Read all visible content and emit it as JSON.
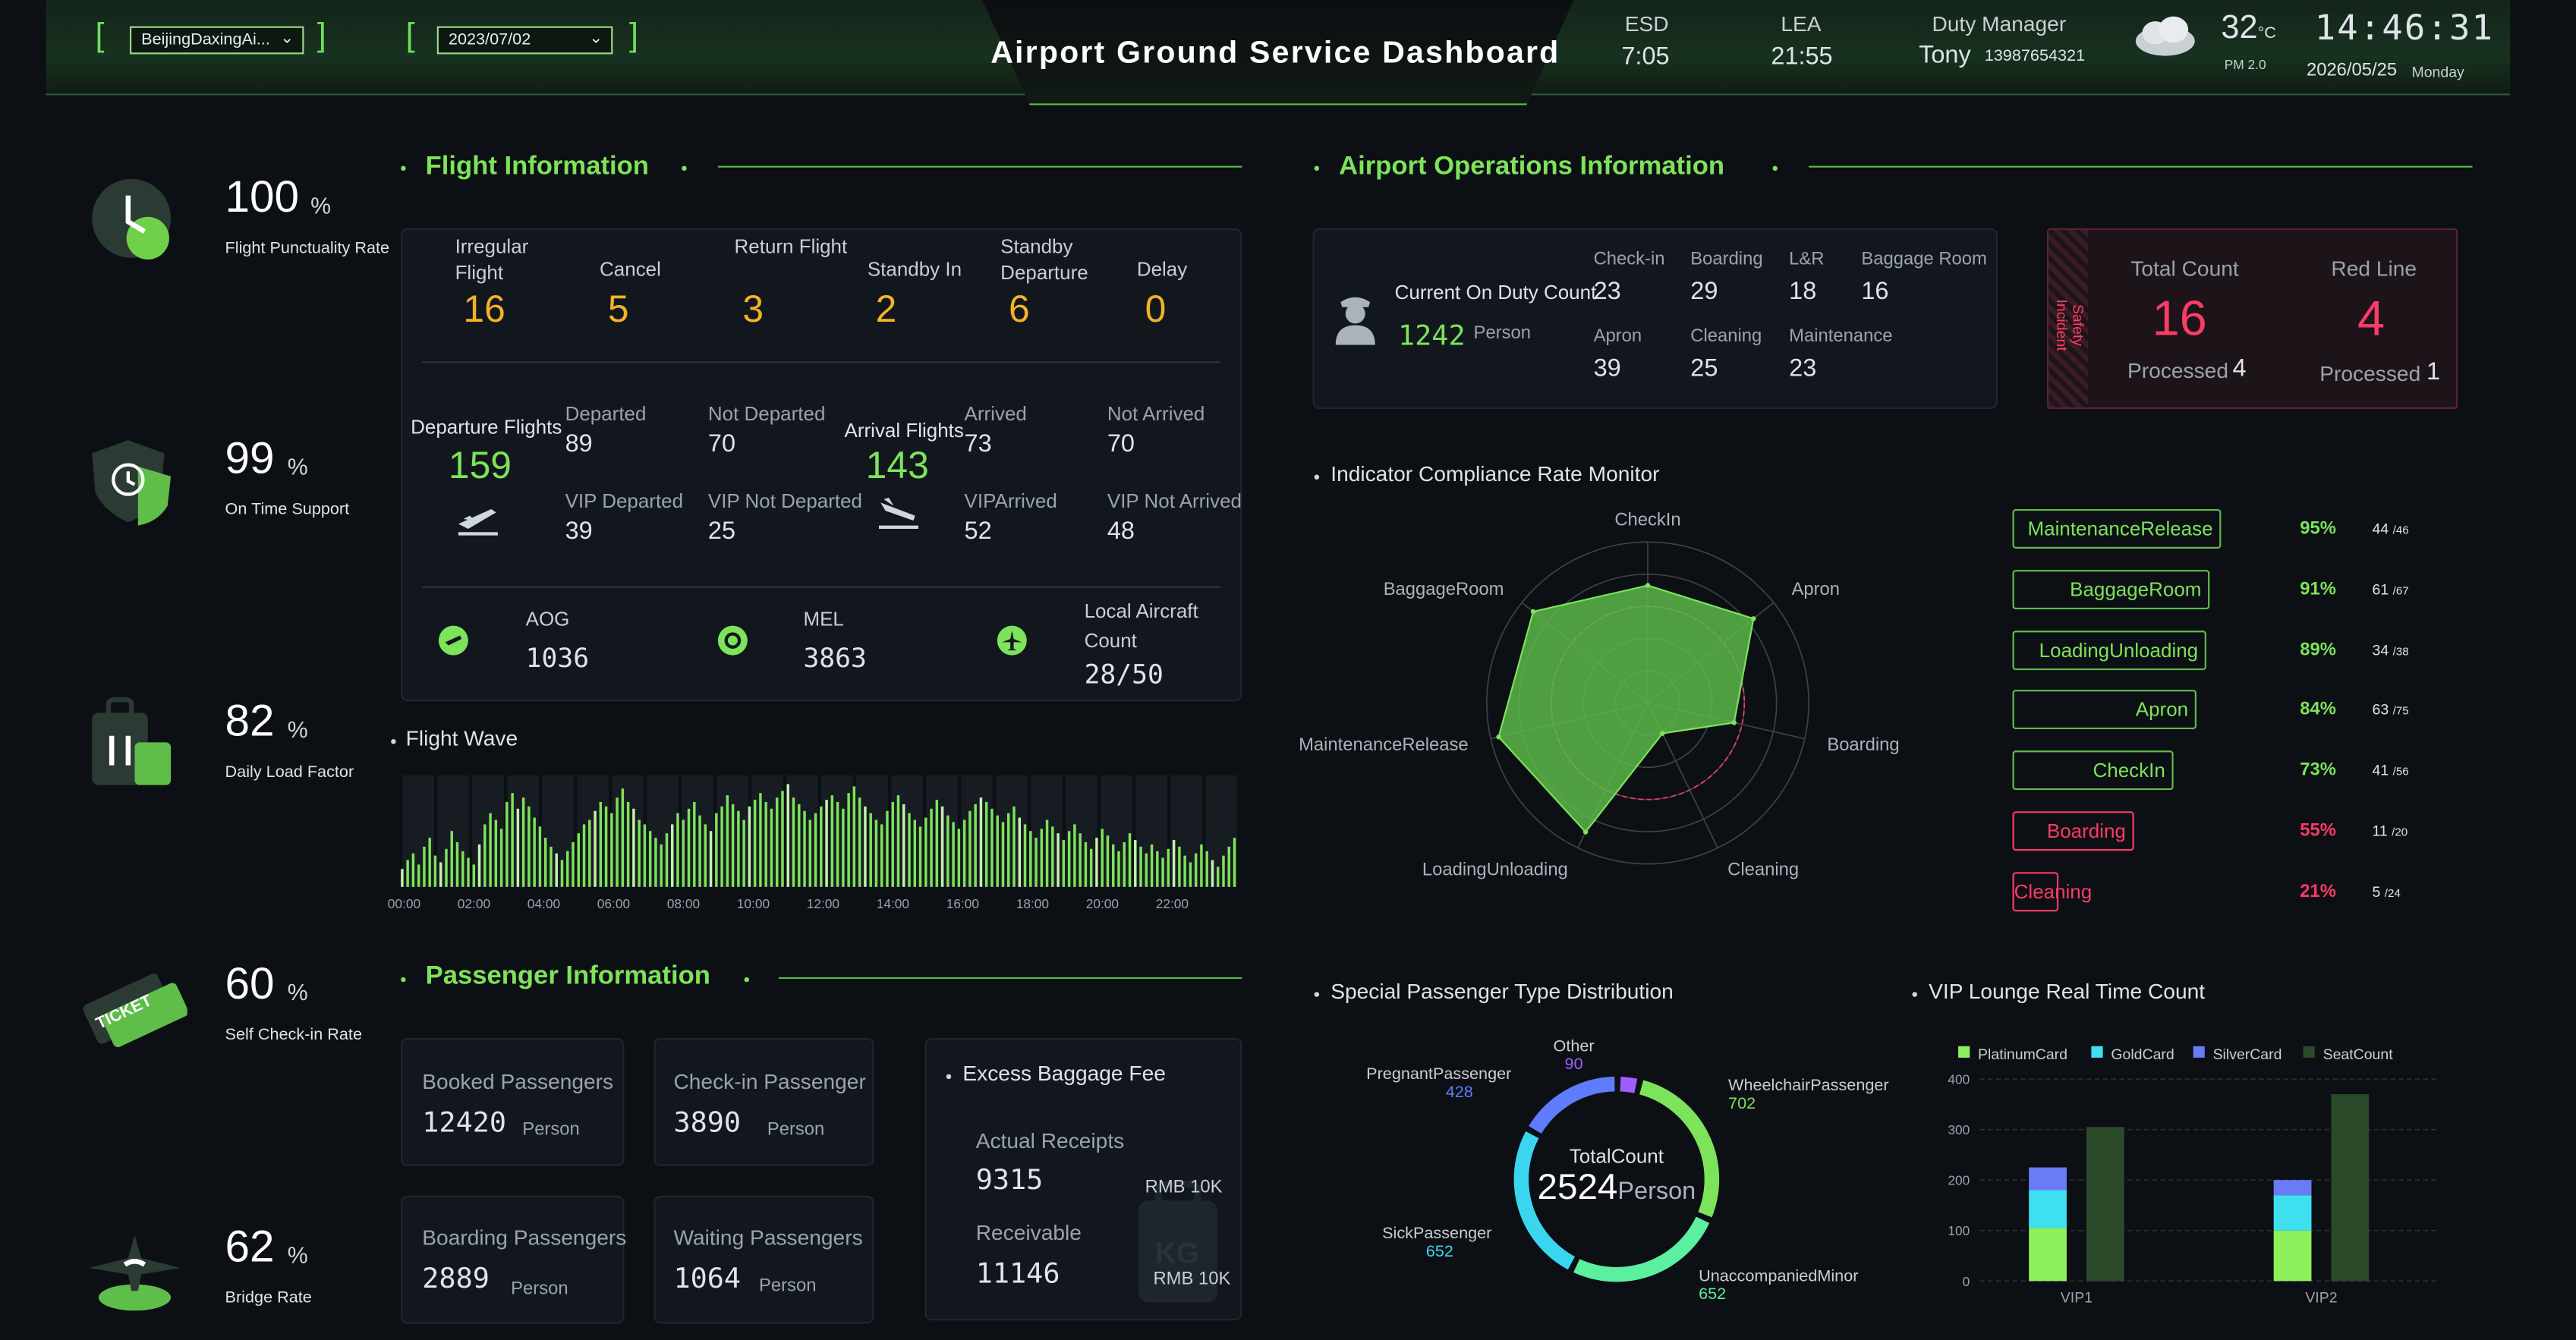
{
  "header": {
    "title": "Airport Ground Service Dashboard",
    "airport_value": "BeijingDaxingAi...",
    "date_value": "2023/07/02",
    "esd_label": "ESD",
    "esd_value": "7:05",
    "lea_label": "LEA",
    "lea_value": "21:55",
    "manager_label": "Duty Manager",
    "manager_name": "Tony",
    "manager_phone": "13987654321",
    "temp": "32",
    "temp_unit": "°C",
    "pm": "PM 2.0",
    "clock": "14:46:31",
    "date": "2026/05/25",
    "weekday": "Monday"
  },
  "kpis": [
    {
      "value": "100",
      "unit": "%",
      "label": "Flight Punctuality Rate",
      "icon": "clock-icon"
    },
    {
      "value": "99",
      "unit": "%",
      "label": "On Time Support",
      "icon": "shield-clock-icon"
    },
    {
      "value": "82",
      "unit": "%",
      "label": "Daily Load Factor",
      "icon": "luggage-icon"
    },
    {
      "value": "60",
      "unit": "%",
      "label": "Self Check-in Rate",
      "icon": "ticket-icon"
    },
    {
      "value": "62",
      "unit": "%",
      "label": "Bridge Rate",
      "icon": "plane-bridge-icon"
    }
  ],
  "flight": {
    "title": "Flight Information",
    "stats": [
      {
        "label": "Irregular Flight",
        "value": "16"
      },
      {
        "label": "Cancel",
        "value": "5"
      },
      {
        "label": "Return Flight",
        "value": "3"
      },
      {
        "label": "Standby In",
        "value": "2"
      },
      {
        "label": "Standby Departure",
        "value": "6"
      },
      {
        "label": "Delay",
        "value": "0"
      }
    ],
    "departure": {
      "label": "Departure Flights",
      "value": "159",
      "departed_label": "Departed",
      "departed": "89",
      "not_departed_label": "Not Departed",
      "not_departed": "70",
      "vip_departed_label": "VIP Departed",
      "vip_departed": "39",
      "vip_not_departed_label": "VIP Not Departed",
      "vip_not_departed": "25"
    },
    "arrival": {
      "label": "Arrival Flights",
      "value": "143",
      "arrived_label": "Arrived",
      "arrived": "73",
      "not_arrived_label": "Not Arrived",
      "not_arrived": "70",
      "vip_arrived_label": "VIPArrived",
      "vip_arrived": "52",
      "vip_not_arrived_label": "VIP Not Arrived",
      "vip_not_arrived": "48"
    },
    "aog_label": "AOG",
    "aog": "1036",
    "mel_label": "MEL",
    "mel": "3863",
    "local_label": "Local Aircraft Count",
    "local": "28/50"
  },
  "wave": {
    "title": "Flight Wave",
    "ticks": [
      "00:00",
      "02:00",
      "04:00",
      "06:00",
      "08:00",
      "10:00",
      "12:00",
      "14:00",
      "16:00",
      "18:00",
      "20:00",
      "22:00"
    ],
    "values": [
      8,
      12,
      15,
      10,
      18,
      22,
      14,
      11,
      17,
      25,
      20,
      16,
      13,
      10,
      19,
      28,
      33,
      30,
      26,
      38,
      42,
      35,
      40,
      36,
      31,
      27,
      22,
      18,
      15,
      12,
      16,
      20,
      24,
      28,
      30,
      34,
      38,
      36,
      33,
      40,
      44,
      38,
      35,
      30,
      28,
      25,
      22,
      19,
      24,
      28,
      33,
      30,
      35,
      38,
      32,
      28,
      25,
      33,
      36,
      41,
      37,
      34,
      30,
      36,
      39,
      42,
      38,
      35,
      40,
      43,
      46,
      40,
      37,
      34,
      30,
      33,
      36,
      39,
      41,
      38,
      35,
      42,
      45,
      40,
      36,
      33,
      30,
      28,
      34,
      38,
      41,
      37,
      33,
      30,
      27,
      31,
      35,
      39,
      36,
      32,
      29,
      26,
      30,
      34,
      37,
      40,
      38,
      35,
      32,
      29,
      33,
      36,
      31,
      28,
      25,
      22,
      26,
      30,
      27,
      24,
      21,
      25,
      28,
      24,
      20,
      17,
      22,
      26,
      23,
      19,
      16,
      20,
      24,
      21,
      18,
      15,
      19,
      16,
      13,
      17,
      21,
      18,
      14,
      11,
      15,
      19,
      16,
      12,
      9,
      14,
      18,
      22
    ]
  },
  "passenger": {
    "title": "Passenger Information",
    "booked_label": "Booked Passengers",
    "booked": "12420",
    "checkin_label": "Check-in Passenger",
    "checkin": "3890",
    "boarding_label": "Boarding  Passengers",
    "boarding": "2889",
    "waiting_label": "Waiting Passengers",
    "waiting": "1064",
    "person": "Person",
    "fee": {
      "title": "Excess Baggage Fee",
      "actual_label": "Actual Receipts",
      "actual": "9315",
      "actual_unit": "RMB 10K",
      "receivable_label": "Receivable",
      "receivable": "11146",
      "receivable_unit": "RMB 10K"
    }
  },
  "ops": {
    "title": "Airport Operations Information",
    "duty_label": "Current On Duty Count",
    "duty": "1242",
    "duty_unit": "Person",
    "items": [
      {
        "label": "Check-in",
        "value": "23"
      },
      {
        "label": "Boarding",
        "value": "29"
      },
      {
        "label": "L&R",
        "value": "18"
      },
      {
        "label": "Baggage Room",
        "value": "16"
      },
      {
        "label": "Apron",
        "value": "39"
      },
      {
        "label": "Cleaning",
        "value": "25"
      },
      {
        "label": "Maintenance",
        "value": "23"
      }
    ],
    "safety": {
      "tag": "Safety Incident",
      "total_label": "Total Count",
      "total": "16",
      "processed_label": "Processed",
      "processed_total": "4",
      "red_label": "Red Line",
      "red": "4",
      "processed_red": "1"
    }
  },
  "compliance": {
    "title": "Indicator Compliance Rate Monitor",
    "rows": [
      {
        "name": "MaintenanceRelease",
        "rate": "95%",
        "done": "44",
        "total": "/46",
        "ok": true
      },
      {
        "name": "BaggageRoom",
        "rate": "91%",
        "done": "61",
        "total": "/67",
        "ok": true
      },
      {
        "name": "LoadingUnloading",
        "rate": "89%",
        "done": "34",
        "total": "/38",
        "ok": true
      },
      {
        "name": "Apron",
        "rate": "84%",
        "done": "63",
        "total": "/75",
        "ok": true
      },
      {
        "name": "CheckIn",
        "rate": "73%",
        "done": "41",
        "total": "/56",
        "ok": true
      },
      {
        "name": "Boarding",
        "rate": "55%",
        "done": "11",
        "total": "/20",
        "ok": false
      },
      {
        "name": "Cleaning",
        "rate": "21%",
        "done": "5",
        "total": "/24",
        "ok": false
      }
    ]
  },
  "chart_data": [
    {
      "type": "radar",
      "title": "Indicator Compliance Rate Monitor",
      "axes": [
        "CheckIn",
        "Apron",
        "Boarding",
        "Cleaning",
        "LoadingUnloading",
        "MaintenanceRelease",
        "BaggageRoom"
      ],
      "values": [
        73,
        84,
        55,
        21,
        89,
        95,
        91
      ],
      "max": 100
    },
    {
      "type": "donut",
      "title": "Special Passenger Type Distribution",
      "center_label": "TotalCount",
      "total": "2524",
      "unit": "Person",
      "slices": [
        {
          "name": "Other",
          "value": 90,
          "color": "#a05cff"
        },
        {
          "name": "WheelchairPassenger",
          "value": 702,
          "color": "#7de35a"
        },
        {
          "name": "UnaccompaniedMinor",
          "value": 652,
          "color": "#5af0a0"
        },
        {
          "name": "SickPassenger",
          "value": 652,
          "color": "#3ad6f0"
        },
        {
          "name": "PregnantPassenger",
          "value": 428,
          "color": "#5f7cff"
        }
      ]
    },
    {
      "type": "bar",
      "title": "VIP Lounge Real Time Count",
      "categories": [
        "VIP1",
        "VIP2"
      ],
      "ylim": [
        0,
        400
      ],
      "yticks": [
        "0",
        "100",
        "200",
        "300",
        "400"
      ],
      "series": [
        {
          "name": "PlatinumCard",
          "values": [
            105,
            100
          ],
          "color": "#8ef05a"
        },
        {
          "name": "GoldCard",
          "values": [
            75,
            70
          ],
          "color": "#3ee0f0"
        },
        {
          "name": "SilverCard",
          "values": [
            45,
            30
          ],
          "color": "#6a7cf5"
        },
        {
          "name": "SeatCount",
          "values": [
            305,
            370
          ],
          "color": "#2a4a2a"
        }
      ],
      "stacked": [
        "PlatinumCard",
        "GoldCard",
        "SilverCard"
      ]
    }
  ]
}
